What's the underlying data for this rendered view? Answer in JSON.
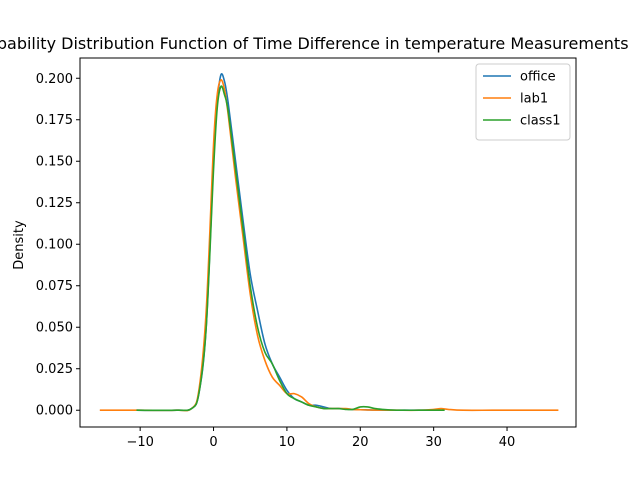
{
  "chart_data": {
    "type": "line",
    "title": "Probability Distribution Function of Time Difference in temperature Measurements",
    "xlabel": "",
    "ylabel": "Density",
    "xlim": [
      -18.2,
      49.4
    ],
    "ylim": [
      -0.0101,
      0.2122
    ],
    "xticks": [
      -10,
      0,
      10,
      20,
      30,
      40
    ],
    "xtick_labels": [
      "−10",
      "0",
      "10",
      "20",
      "30",
      "40"
    ],
    "yticks": [
      0.0,
      0.025,
      0.05,
      0.075,
      0.1,
      0.125,
      0.15,
      0.175,
      0.2
    ],
    "ytick_labels": [
      "0.000",
      "0.025",
      "0.050",
      "0.075",
      "0.100",
      "0.125",
      "0.150",
      "0.175",
      "0.200"
    ],
    "grid": false,
    "legend_position": "top-right",
    "series": [
      {
        "name": "office",
        "color": "#1f77b4",
        "x": [
          -10.5,
          -5,
          -3,
          -2,
          -1,
          0,
          0.5,
          1,
          1.5,
          2,
          3,
          4,
          5,
          6,
          7,
          8,
          9,
          10,
          11,
          12,
          13,
          14,
          15,
          16,
          17,
          18,
          19,
          20,
          21,
          22,
          24,
          26,
          28,
          30,
          31
        ],
        "y": [
          0,
          0,
          0.001,
          0.01,
          0.05,
          0.15,
          0.185,
          0.202,
          0.198,
          0.185,
          0.15,
          0.115,
          0.082,
          0.06,
          0.04,
          0.028,
          0.02,
          0.012,
          0.007,
          0.005,
          0.003,
          0.003,
          0.002,
          0.001,
          0.001,
          0.0008,
          0.0005,
          0.0003,
          0.0002,
          0.0001,
          0,
          0,
          0,
          0,
          0
        ]
      },
      {
        "name": "lab1",
        "color": "#ff7f0e",
        "x": [
          -15.5,
          -10,
          -5,
          -3,
          -2,
          -1,
          0,
          0.5,
          1,
          1.5,
          2,
          3,
          4,
          5,
          6,
          7,
          8,
          9,
          10,
          11,
          12,
          13,
          14,
          15,
          16,
          17,
          18,
          19,
          20,
          22,
          25,
          28,
          30,
          31,
          32,
          34,
          38,
          42,
          47
        ],
        "y": [
          0,
          0,
          0,
          0.001,
          0.012,
          0.06,
          0.16,
          0.19,
          0.199,
          0.193,
          0.178,
          0.14,
          0.105,
          0.07,
          0.045,
          0.03,
          0.02,
          0.015,
          0.01,
          0.01,
          0.008,
          0.004,
          0.002,
          0.001,
          0.001,
          0.001,
          0.001,
          0.0005,
          0.0003,
          0.0001,
          0,
          0,
          0.0005,
          0.001,
          0.0005,
          0,
          0,
          0,
          0
        ]
      },
      {
        "name": "class1",
        "color": "#2ca02c",
        "x": [
          -10.5,
          -5,
          -3,
          -2,
          -1,
          0,
          0.5,
          1,
          1.5,
          2,
          3,
          4,
          5,
          6,
          7,
          8,
          9,
          10,
          11,
          12,
          13,
          14,
          15,
          16,
          17,
          18,
          19,
          20,
          21,
          22,
          23,
          24,
          26,
          28,
          30,
          31.5
        ],
        "y": [
          0,
          0,
          0.001,
          0.01,
          0.05,
          0.145,
          0.182,
          0.195,
          0.19,
          0.18,
          0.145,
          0.11,
          0.075,
          0.05,
          0.035,
          0.028,
          0.018,
          0.01,
          0.007,
          0.005,
          0.003,
          0.002,
          0.001,
          0.001,
          0.001,
          0.0005,
          0.0005,
          0.002,
          0.002,
          0.001,
          0.0005,
          0.0002,
          0,
          0,
          0,
          0
        ]
      }
    ]
  }
}
